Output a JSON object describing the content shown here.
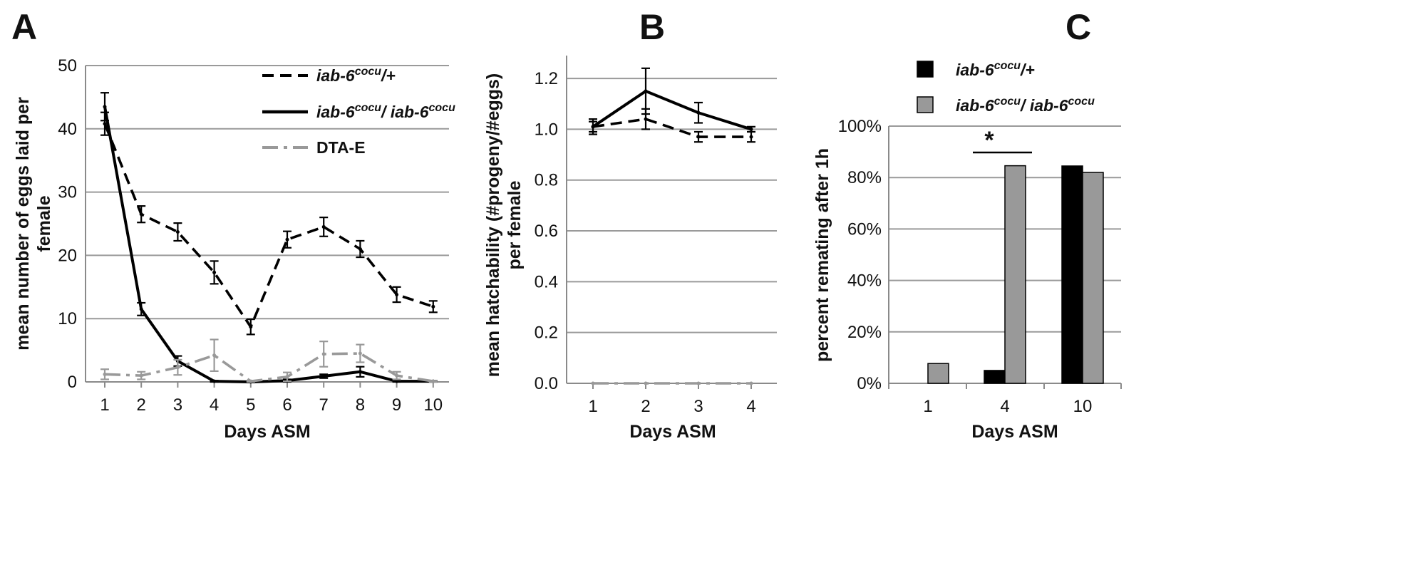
{
  "panels": [
    {
      "letter": "A"
    },
    {
      "letter": "B"
    },
    {
      "letter": "C"
    }
  ],
  "chart_data": [
    {
      "type": "line",
      "panel": "A",
      "xlabel": "Days ASM",
      "ylabel_lines": [
        "mean number of  eggs laid per",
        "female"
      ],
      "x": [
        1,
        2,
        3,
        4,
        5,
        6,
        7,
        8,
        9,
        10
      ],
      "ylim": [
        0,
        50
      ],
      "yticks": [
        0,
        10,
        20,
        30,
        40,
        50
      ],
      "grid": true,
      "legend_position": "top-right",
      "series": [
        {
          "name_base": "iab-6",
          "name_sup": "cocu",
          "name_tail": "/+",
          "values": [
            40.8,
            26.5,
            23.7,
            17.3,
            8.7,
            22.5,
            24.5,
            21.0,
            13.8,
            11.9
          ],
          "errors": [
            1.8,
            1.3,
            1.4,
            1.8,
            1.2,
            1.3,
            1.5,
            1.3,
            1.2,
            0.9
          ],
          "style": "dashed",
          "color": "#000000"
        },
        {
          "name_base": "iab-6",
          "name_sup": "cocu",
          "name_tail": "/ ",
          "name_base2": "iab-6",
          "name_sup2": "cocu",
          "values": [
            43.5,
            11.5,
            3.3,
            0.1,
            0.0,
            0.2,
            0.9,
            1.6,
            0.1,
            0.1
          ],
          "errors": [
            2.2,
            1.0,
            0.8,
            0.1,
            0.1,
            0.2,
            0.3,
            0.8,
            0.1,
            0.1
          ],
          "style": "solid",
          "color": "#000000"
        },
        {
          "name": "DTA-E",
          "values": [
            1.2,
            1.0,
            2.3,
            4.2,
            0.1,
            0.8,
            4.4,
            4.5,
            1.0,
            0.1
          ],
          "errors": [
            0.8,
            0.6,
            1.2,
            2.5,
            0.1,
            0.7,
            2.0,
            1.4,
            0.6,
            0.1
          ],
          "style": "dashdot",
          "color": "#999999"
        }
      ]
    },
    {
      "type": "line",
      "panel": "B",
      "xlabel": "Days ASM",
      "ylabel_lines": [
        "mean hatchability (#progeny/#eggs)",
        "per female"
      ],
      "x": [
        1,
        2,
        3,
        4
      ],
      "ylim": [
        0,
        1.2
      ],
      "yticks": [
        "0.0",
        "0.2",
        "0.4",
        "0.6",
        "0.8",
        "1.0",
        "1.2"
      ],
      "ymax_axis": 1.29,
      "grid": true,
      "series": [
        {
          "values": [
            1.01,
            1.04,
            0.97,
            0.97
          ],
          "errors": [
            0.02,
            0.04,
            0.02,
            0.02
          ],
          "style": "dashed",
          "color": "#000000"
        },
        {
          "values": [
            1.01,
            1.15,
            1.065,
            1.0
          ],
          "errors": [
            0.03,
            0.09,
            0.04,
            0.01
          ],
          "style": "solid",
          "color": "#000000"
        },
        {
          "values": [
            0.0,
            0.0,
            0.0,
            0.0
          ],
          "errors": [
            0,
            0,
            0,
            0
          ],
          "style": "dashdot",
          "color": "#999999"
        }
      ]
    },
    {
      "type": "bar",
      "panel": "C",
      "xlabel": "Days ASM",
      "ylabel": "percent remating after 1h",
      "categories": [
        "1",
        "4",
        "10"
      ],
      "ylim": [
        0,
        100
      ],
      "yticks": [
        "0%",
        "20%",
        "40%",
        "60%",
        "80%",
        "100%"
      ],
      "grid": true,
      "legend_position": "top",
      "series": [
        {
          "name_base": "iab-6",
          "name_sup": "cocu",
          "name_tail": "/+",
          "values": [
            0,
            5,
            84.5
          ],
          "color": "#000000"
        },
        {
          "name_base": "iab-6",
          "name_sup": "cocu",
          "name_tail": "/ ",
          "name_base2": "iab-6",
          "name_sup2": "cocu",
          "values": [
            7.7,
            84.6,
            82
          ],
          "color": "#999999"
        }
      ],
      "annotations": [
        {
          "text": "*",
          "between_category": "4"
        }
      ]
    }
  ]
}
